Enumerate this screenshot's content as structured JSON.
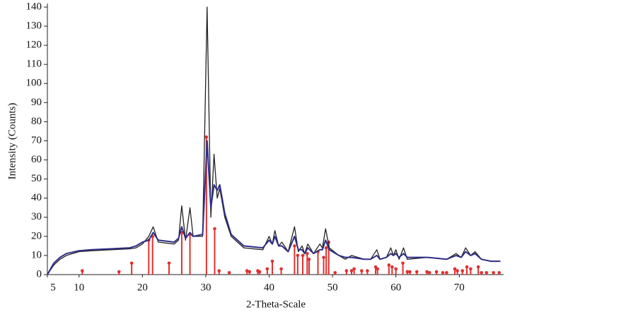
{
  "chart_data": {
    "type": "line",
    "xlabel": "2-Theta-Scale",
    "ylabel": "Intensity (Counts)",
    "xlim": [
      5,
      77
    ],
    "xticks": [
      5,
      10,
      20,
      30,
      40,
      50,
      60,
      70
    ],
    "ylim": [
      0,
      140
    ],
    "yticks": [
      0,
      10,
      20,
      30,
      40,
      50,
      60,
      70,
      80,
      90,
      100,
      110,
      120,
      130,
      140
    ],
    "series": [
      {
        "color": "#222222",
        "mark": "line",
        "x": [
          5,
          6,
          7,
          8,
          10,
          12,
          15,
          18,
          19,
          20,
          21,
          21.7,
          22.5,
          25,
          25.7,
          26.2,
          26.8,
          27.5,
          28,
          29.5,
          30.2,
          30.8,
          31.3,
          31.8,
          32.2,
          33,
          34,
          36,
          39,
          40,
          40.5,
          40.9,
          41.5,
          42,
          43,
          44,
          44.6,
          45.2,
          45.6,
          46.1,
          47,
          48,
          48.4,
          48.9,
          49.5,
          51,
          52,
          53,
          55,
          56,
          57,
          57.5,
          58.5,
          59.2,
          59.6,
          60,
          60.5,
          61.2,
          61.8,
          65,
          68,
          69.5,
          70.3,
          71,
          71.8,
          72.5,
          73.5,
          75,
          76.5
        ],
        "values": [
          0,
          5,
          8,
          10,
          12,
          12.5,
          13,
          13.5,
          14,
          16,
          20,
          25,
          17,
          16,
          18,
          36,
          18,
          35,
          20,
          20,
          140,
          30,
          63,
          40,
          45,
          30,
          20,
          14,
          13,
          20,
          16,
          23,
          15,
          17,
          12,
          25,
          12,
          15,
          11,
          16,
          11,
          16,
          14,
          24,
          14,
          10,
          8,
          10,
          8,
          8,
          13,
          8,
          9,
          14,
          10,
          13,
          8,
          14,
          8,
          9,
          8,
          11,
          9,
          14,
          10,
          12,
          8,
          7,
          7
        ]
      },
      {
        "color": "#2e2e86",
        "mark": "line",
        "x": [
          5,
          6,
          7,
          8,
          10,
          12,
          15,
          18,
          19,
          20,
          21,
          21.7,
          22.5,
          25,
          25.7,
          26.2,
          26.8,
          27.5,
          28,
          29.5,
          30.2,
          30.8,
          31.3,
          31.8,
          32.2,
          33,
          34,
          36,
          39,
          40,
          40.5,
          40.9,
          41.5,
          42,
          43,
          44,
          44.6,
          45.2,
          45.6,
          46.1,
          47,
          48,
          48.4,
          48.9,
          49.5,
          51,
          52,
          53,
          55,
          56,
          57,
          57.5,
          58.5,
          59.2,
          59.6,
          60,
          60.5,
          61.2,
          61.8,
          65,
          68,
          69.5,
          70.3,
          71,
          71.8,
          72.5,
          73.5,
          75,
          76.5
        ],
        "values": [
          0,
          6,
          9,
          11,
          12.5,
          13,
          13.5,
          14,
          15,
          17,
          18,
          22,
          18,
          17,
          19,
          25,
          19,
          22,
          20,
          21,
          70,
          35,
          47,
          44,
          47,
          32,
          21,
          15,
          14,
          18,
          16,
          20,
          15,
          15,
          12,
          20,
          13,
          13,
          11,
          14,
          11,
          13,
          13,
          18,
          13,
          10,
          9,
          9,
          8,
          8,
          10,
          8,
          9,
          11,
          10,
          11,
          9,
          11,
          9,
          9,
          8,
          10,
          9,
          12,
          10,
          11,
          8,
          7,
          7
        ]
      },
      {
        "color": "#e03030",
        "mark": "stem",
        "x": [
          10.5,
          16.3,
          18.3,
          21,
          21.6,
          24.2,
          26.2,
          27.5,
          30.1,
          31.4,
          32.1,
          33.7,
          36.5,
          36.9,
          38.2,
          38.5,
          39.7,
          40.5,
          41.9,
          44,
          44.5,
          45.3,
          46,
          46.3,
          47.7,
          48.6,
          49,
          49.4,
          50.4,
          52.2,
          53,
          53.4,
          54.6,
          55.5,
          56.8,
          57.1,
          58.9,
          59.4,
          60,
          61.1,
          61.8,
          62.2,
          63.3,
          64.9,
          65.3,
          66.4,
          67.4,
          68,
          69.3,
          69.7,
          70.5,
          71.2,
          71.8,
          73,
          73.5,
          74.3,
          75.4,
          76.3
        ],
        "values": [
          2,
          1.5,
          6,
          18,
          20,
          6,
          22,
          21,
          72,
          24,
          2,
          1,
          2,
          1.5,
          2,
          1.5,
          3,
          7,
          3,
          15,
          10,
          10,
          11,
          8,
          12,
          9,
          14,
          17,
          1,
          2,
          2,
          3,
          2,
          2,
          4,
          3,
          5,
          4,
          3,
          6,
          1.5,
          1.5,
          1.5,
          1.5,
          1,
          1.5,
          1,
          1,
          3,
          2,
          2,
          4,
          3,
          4,
          1,
          1,
          1,
          1
        ]
      }
    ]
  }
}
